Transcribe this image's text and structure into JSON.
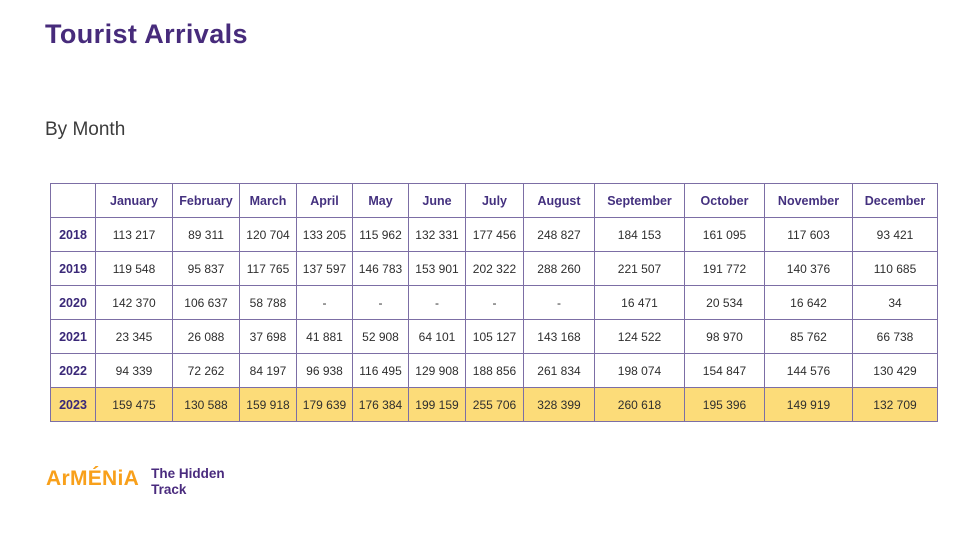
{
  "page": {
    "title": "Tourist Arrivals",
    "subtitle": "By Month"
  },
  "table": {
    "corner_label": "",
    "columns": [
      "January",
      "February",
      "March",
      "April",
      "May",
      "June",
      "July",
      "August",
      "September",
      "October",
      "November",
      "December"
    ],
    "rows": [
      {
        "year": "2018",
        "highlight": false,
        "values": [
          "113 217",
          "89 311",
          "120 704",
          "133 205",
          "115 962",
          "132 331",
          "177 456",
          "248 827",
          "184 153",
          "161 095",
          "117 603",
          "93 421"
        ]
      },
      {
        "year": "2019",
        "highlight": false,
        "values": [
          "119 548",
          "95 837",
          "117 765",
          "137 597",
          "146 783",
          "153 901",
          "202 322",
          "288 260",
          "221 507",
          "191 772",
          "140 376",
          "110 685"
        ]
      },
      {
        "year": "2020",
        "highlight": false,
        "values": [
          "142 370",
          "106 637",
          "58 788",
          "-",
          "-",
          "-",
          "-",
          "-",
          "16 471",
          "20 534",
          "16 642",
          "34"
        ]
      },
      {
        "year": "2021",
        "highlight": false,
        "values": [
          "23 345",
          "26 088",
          "37 698",
          "41 881",
          "52 908",
          "64 101",
          "105 127",
          "143 168",
          "124 522",
          "98 970",
          "85 762",
          "66 738"
        ]
      },
      {
        "year": "2022",
        "highlight": false,
        "values": [
          "94 339",
          "72 262",
          "84 197",
          "96 938",
          "116 495",
          "129 908",
          "188 856",
          "261 834",
          "198 074",
          "154 847",
          "144 576",
          "130 429"
        ]
      },
      {
        "year": "2023",
        "highlight": true,
        "values": [
          "159 475",
          "130 588",
          "159 918",
          "179 639",
          "176 384",
          "199 159",
          "255 706",
          "328 399",
          "260 618",
          "195 396",
          "149 919",
          "132 709"
        ]
      }
    ]
  },
  "logo": {
    "brand": "ArMÉNiA",
    "tagline_line1": "The Hidden",
    "tagline_line2": "Track"
  },
  "colors": {
    "title_purple": "#472b7b",
    "header_purple": "#44317f",
    "border_purple": "#7c6ea5",
    "highlight_yellow": "#fcdc79",
    "logo_orange": "#f8a01b",
    "body_text": "#2e2e2e"
  },
  "chart_data": {
    "type": "table",
    "title": "Tourist Arrivals",
    "subtitle": "By Month",
    "categories": [
      "January",
      "February",
      "March",
      "April",
      "May",
      "June",
      "July",
      "August",
      "September",
      "October",
      "November",
      "December"
    ],
    "series": [
      {
        "name": "2018",
        "values": [
          113217,
          89311,
          120704,
          133205,
          115962,
          132331,
          177456,
          248827,
          184153,
          161095,
          117603,
          93421
        ]
      },
      {
        "name": "2019",
        "values": [
          119548,
          95837,
          117765,
          137597,
          146783,
          153901,
          202322,
          288260,
          221507,
          191772,
          140376,
          110685
        ]
      },
      {
        "name": "2020",
        "values": [
          142370,
          106637,
          58788,
          null,
          null,
          null,
          null,
          null,
          16471,
          20534,
          16642,
          34
        ]
      },
      {
        "name": "2021",
        "values": [
          23345,
          26088,
          37698,
          41881,
          52908,
          64101,
          105127,
          143168,
          124522,
          98970,
          85762,
          66738
        ]
      },
      {
        "name": "2022",
        "values": [
          94339,
          72262,
          84197,
          96938,
          116495,
          129908,
          188856,
          261834,
          198074,
          154847,
          144576,
          130429
        ]
      },
      {
        "name": "2023",
        "values": [
          159475,
          130588,
          159918,
          179639,
          176384,
          199159,
          255706,
          328399,
          260618,
          195396,
          149919,
          132709
        ]
      }
    ],
    "highlighted_series": "2023",
    "missing_value_marker": "-"
  }
}
